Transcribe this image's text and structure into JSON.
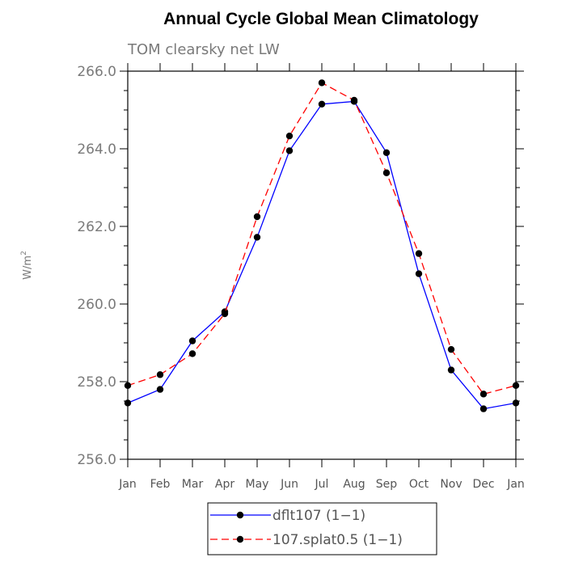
{
  "chart_data": {
    "type": "line",
    "title": "Annual Cycle Global Mean Climatology",
    "subtitle": "TOM clearsky net LW",
    "xlabel": "",
    "ylabel": "W/m",
    "ylabel_superscript": "2",
    "categories": [
      "Jan",
      "Feb",
      "Mar",
      "Apr",
      "May",
      "Jun",
      "Jul",
      "Aug",
      "Sep",
      "Oct",
      "Nov",
      "Dec",
      "Jan"
    ],
    "ylim": [
      256.0,
      266.0
    ],
    "yticks": [
      "256.0",
      "258.0",
      "260.0",
      "262.0",
      "264.0",
      "266.0"
    ],
    "grid": false,
    "legend_position": "bottom",
    "series": [
      {
        "name": "dflt107 (1−1)",
        "color": "#0000ff",
        "dash": "solid",
        "marker": "circle",
        "values": [
          257.45,
          257.8,
          259.05,
          259.8,
          261.72,
          263.95,
          265.15,
          265.22,
          263.9,
          260.78,
          258.3,
          257.3,
          257.45
        ]
      },
      {
        "name": "107.splat0.5 (1−1)",
        "color": "#ff0000",
        "dash": "dashed",
        "marker": "circle",
        "values": [
          257.9,
          258.18,
          258.72,
          259.75,
          262.25,
          264.33,
          265.7,
          265.25,
          263.38,
          261.3,
          258.83,
          257.68,
          257.9
        ]
      }
    ]
  }
}
